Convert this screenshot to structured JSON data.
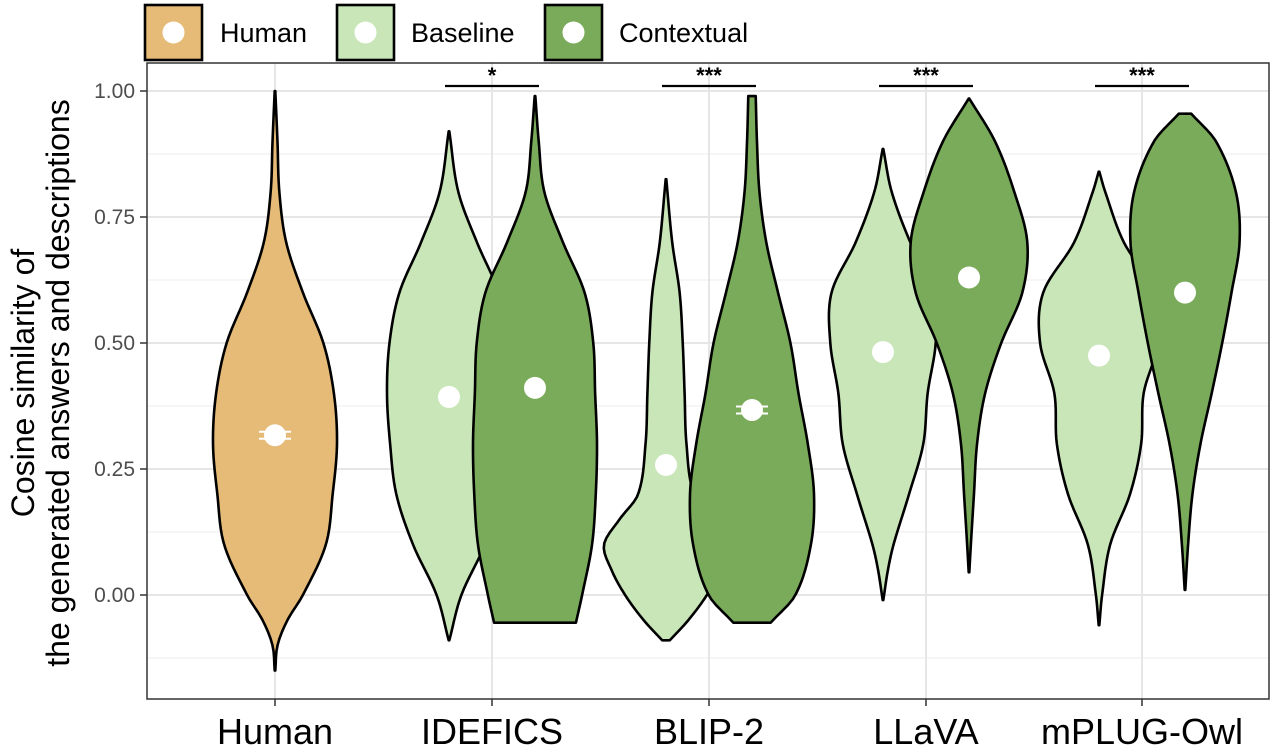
{
  "chart_data": {
    "type": "violin",
    "ylabel_line1": "Cosine similarity of",
    "ylabel_line2": "the generated answers and descriptions",
    "ylim": [
      -0.2,
      1.06
    ],
    "yticks": [
      0.0,
      0.25,
      0.5,
      0.75,
      1.0
    ],
    "ytick_labels": [
      "0.00",
      "0.25",
      "0.50",
      "0.75",
      "1.00"
    ],
    "categories": [
      "Human",
      "IDEFICS",
      "BLIP-2",
      "LLaVA",
      "mPLUG-Owl"
    ],
    "legend": [
      {
        "name": "Human",
        "color": "#e6bb78"
      },
      {
        "name": "Baseline",
        "color": "#c9e6b8"
      },
      {
        "name": "Contextual",
        "color": "#7aab5a"
      }
    ],
    "colors": {
      "Human": "#e6bb78",
      "Baseline": "#c9e6b8",
      "Contextual": "#7aab5a",
      "mean_marker": "#ffffff"
    },
    "violins": [
      {
        "category": "Human",
        "condition": "Human",
        "min": -0.15,
        "max": 1.0,
        "mean": 0.317,
        "has_errorbar": true,
        "profile": [
          [
            -0.15,
            0.005
          ],
          [
            -0.1,
            0.04
          ],
          [
            -0.05,
            0.2
          ],
          [
            0.0,
            0.45
          ],
          [
            0.1,
            0.82
          ],
          [
            0.2,
            0.93
          ],
          [
            0.3,
            1.0
          ],
          [
            0.4,
            0.95
          ],
          [
            0.5,
            0.78
          ],
          [
            0.6,
            0.45
          ],
          [
            0.7,
            0.18
          ],
          [
            0.8,
            0.07
          ],
          [
            0.9,
            0.04
          ],
          [
            1.0,
            0.005
          ]
        ]
      },
      {
        "category": "IDEFICS",
        "condition": "Baseline",
        "min": -0.09,
        "max": 0.92,
        "mean": 0.393,
        "has_errorbar": false,
        "profile": [
          [
            -0.09,
            0.005
          ],
          [
            0.0,
            0.2
          ],
          [
            0.1,
            0.58
          ],
          [
            0.2,
            0.85
          ],
          [
            0.3,
            0.95
          ],
          [
            0.4,
            1.0
          ],
          [
            0.5,
            0.96
          ],
          [
            0.6,
            0.8
          ],
          [
            0.7,
            0.45
          ],
          [
            0.8,
            0.15
          ],
          [
            0.92,
            0.005
          ]
        ]
      },
      {
        "category": "IDEFICS",
        "condition": "Contextual",
        "min": -0.055,
        "max": 0.99,
        "mean": 0.411,
        "has_errorbar": false,
        "profile": [
          [
            -0.055,
            0.66
          ],
          [
            0.0,
            0.76
          ],
          [
            0.1,
            0.92
          ],
          [
            0.2,
            0.98
          ],
          [
            0.3,
            1.0
          ],
          [
            0.4,
            0.97
          ],
          [
            0.5,
            0.94
          ],
          [
            0.6,
            0.8
          ],
          [
            0.7,
            0.45
          ],
          [
            0.8,
            0.15
          ],
          [
            0.9,
            0.06
          ],
          [
            0.99,
            0.005
          ]
        ]
      },
      {
        "category": "BLIP-2",
        "condition": "Baseline",
        "min": -0.09,
        "max": 0.825,
        "mean": 0.258,
        "has_errorbar": false,
        "profile": [
          [
            -0.09,
            0.06
          ],
          [
            -0.05,
            0.36
          ],
          [
            0.0,
            0.66
          ],
          [
            0.05,
            0.88
          ],
          [
            0.1,
            1.0
          ],
          [
            0.15,
            0.75
          ],
          [
            0.2,
            0.45
          ],
          [
            0.3,
            0.33
          ],
          [
            0.4,
            0.3
          ],
          [
            0.5,
            0.27
          ],
          [
            0.6,
            0.22
          ],
          [
            0.7,
            0.1
          ],
          [
            0.825,
            0.005
          ]
        ]
      },
      {
        "category": "BLIP-2",
        "condition": "Contextual",
        "min": -0.055,
        "max": 0.99,
        "mean": 0.367,
        "has_errorbar": true,
        "profile": [
          [
            -0.055,
            0.3
          ],
          [
            0.0,
            0.7
          ],
          [
            0.1,
            0.95
          ],
          [
            0.2,
            1.0
          ],
          [
            0.3,
            0.9
          ],
          [
            0.4,
            0.75
          ],
          [
            0.5,
            0.62
          ],
          [
            0.6,
            0.42
          ],
          [
            0.7,
            0.23
          ],
          [
            0.8,
            0.12
          ],
          [
            0.9,
            0.08
          ],
          [
            0.99,
            0.06
          ]
        ]
      },
      {
        "category": "LLaVA",
        "condition": "Baseline",
        "min": -0.01,
        "max": 0.885,
        "mean": 0.482,
        "has_errorbar": false,
        "profile": [
          [
            -0.01,
            0.005
          ],
          [
            0.05,
            0.08
          ],
          [
            0.1,
            0.17
          ],
          [
            0.2,
            0.42
          ],
          [
            0.3,
            0.65
          ],
          [
            0.4,
            0.72
          ],
          [
            0.5,
            0.85
          ],
          [
            0.6,
            0.83
          ],
          [
            0.7,
            0.44
          ],
          [
            0.8,
            0.14
          ],
          [
            0.885,
            0.005
          ]
        ]
      },
      {
        "category": "LLaVA",
        "condition": "Contextual",
        "min": 0.045,
        "max": 0.985,
        "mean": 0.63,
        "has_errorbar": false,
        "profile": [
          [
            0.045,
            0.005
          ],
          [
            0.1,
            0.03
          ],
          [
            0.2,
            0.08
          ],
          [
            0.3,
            0.13
          ],
          [
            0.4,
            0.26
          ],
          [
            0.5,
            0.52
          ],
          [
            0.6,
            0.86
          ],
          [
            0.7,
            0.94
          ],
          [
            0.8,
            0.73
          ],
          [
            0.9,
            0.42
          ],
          [
            0.985,
            0.005
          ]
        ]
      },
      {
        "category": "mPLUG-Owl",
        "condition": "Baseline",
        "min": -0.06,
        "max": 0.84,
        "mean": 0.475,
        "has_errorbar": false,
        "profile": [
          [
            -0.06,
            0.005
          ],
          [
            0.0,
            0.05
          ],
          [
            0.1,
            0.18
          ],
          [
            0.2,
            0.5
          ],
          [
            0.3,
            0.68
          ],
          [
            0.4,
            0.72
          ],
          [
            0.5,
            0.95
          ],
          [
            0.6,
            0.9
          ],
          [
            0.7,
            0.4
          ],
          [
            0.8,
            0.1
          ],
          [
            0.84,
            0.005
          ]
        ]
      },
      {
        "category": "mPLUG-Owl",
        "condition": "Contextual",
        "min": 0.01,
        "max": 0.955,
        "mean": 0.6,
        "has_errorbar": false,
        "profile": [
          [
            0.01,
            0.005
          ],
          [
            0.1,
            0.05
          ],
          [
            0.2,
            0.12
          ],
          [
            0.3,
            0.25
          ],
          [
            0.4,
            0.43
          ],
          [
            0.5,
            0.6
          ],
          [
            0.6,
            0.75
          ],
          [
            0.7,
            0.88
          ],
          [
            0.8,
            0.82
          ],
          [
            0.9,
            0.5
          ],
          [
            0.955,
            0.1
          ]
        ]
      }
    ],
    "significance": [
      {
        "category": "IDEFICS",
        "label": "*"
      },
      {
        "category": "BLIP-2",
        "label": "***"
      },
      {
        "category": "LLaVA",
        "label": "***"
      },
      {
        "category": "mPLUG-Owl",
        "label": "***"
      }
    ]
  }
}
